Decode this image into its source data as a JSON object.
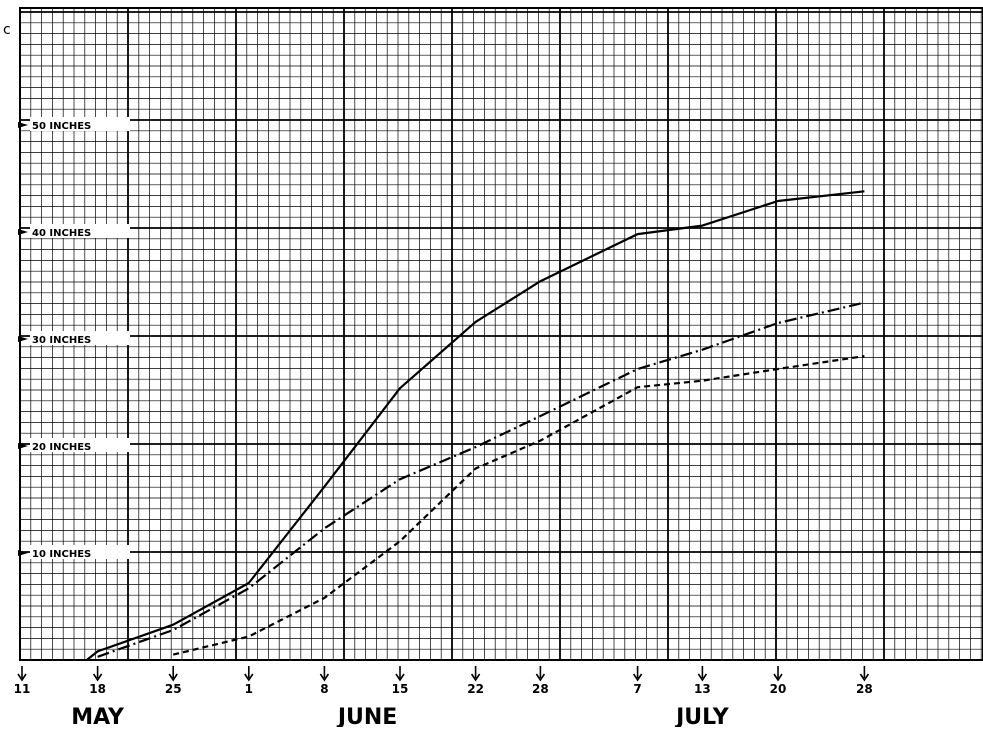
{
  "chart_data": {
    "type": "line",
    "title": "",
    "xlabel": "",
    "ylabel": "",
    "grid": true,
    "y_ticks": [
      {
        "value": 10,
        "label": "10 INCHES"
      },
      {
        "value": 20,
        "label": "20 INCHES"
      },
      {
        "value": 30,
        "label": "30 INCHES"
      },
      {
        "value": 40,
        "label": "40 INCHES"
      },
      {
        "value": 50,
        "label": "50 INCHES"
      }
    ],
    "x_ticks": [
      {
        "date": "May 11",
        "label": "11"
      },
      {
        "date": "May 18",
        "label": "18"
      },
      {
        "date": "May 25",
        "label": "25"
      },
      {
        "date": "June 1",
        "label": "1"
      },
      {
        "date": "June 8",
        "label": "8"
      },
      {
        "date": "June 15",
        "label": "15"
      },
      {
        "date": "June 22",
        "label": "22"
      },
      {
        "date": "June 28",
        "label": "28"
      },
      {
        "date": "July 7",
        "label": "7"
      },
      {
        "date": "July 13",
        "label": "13"
      },
      {
        "date": "July 20",
        "label": "20"
      },
      {
        "date": "July 28",
        "label": "28"
      }
    ],
    "month_labels": [
      {
        "label": "MAY",
        "date": "May 18"
      },
      {
        "label": "JUNE",
        "date": "June 12"
      },
      {
        "label": "JULY",
        "date": "July 13"
      }
    ],
    "series": [
      {
        "style": "solid",
        "points": [
          {
            "date": "May 17",
            "y": 0
          },
          {
            "date": "May 18",
            "y": 0.8
          },
          {
            "date": "May 25",
            "y": 3.3
          },
          {
            "date": "June 1",
            "y": 7.2
          },
          {
            "date": "June 8",
            "y": 16.2
          },
          {
            "date": "June 15",
            "y": 25.4
          },
          {
            "date": "June 22",
            "y": 31.6
          },
          {
            "date": "June 28",
            "y": 35.4
          },
          {
            "date": "July 7",
            "y": 39.8
          },
          {
            "date": "July 13",
            "y": 40.6
          },
          {
            "date": "July 20",
            "y": 42.9
          },
          {
            "date": "July 28",
            "y": 43.8
          }
        ]
      },
      {
        "style": "dash-dot",
        "points": [
          {
            "date": "May 18",
            "y": 0.3
          },
          {
            "date": "May 25",
            "y": 2.8
          },
          {
            "date": "June 1",
            "y": 6.7
          },
          {
            "date": "June 8",
            "y": 12.3
          },
          {
            "date": "June 15",
            "y": 16.9
          },
          {
            "date": "June 22",
            "y": 19.9
          },
          {
            "date": "June 28",
            "y": 22.8
          },
          {
            "date": "July 7",
            "y": 27.2
          },
          {
            "date": "July 13",
            "y": 29.0
          },
          {
            "date": "July 20",
            "y": 31.5
          },
          {
            "date": "July 28",
            "y": 33.4
          }
        ]
      },
      {
        "style": "dashed",
        "points": [
          {
            "date": "May 25",
            "y": 0.5
          },
          {
            "date": "June 1",
            "y": 2.2
          },
          {
            "date": "June 8",
            "y": 5.8
          },
          {
            "date": "June 15",
            "y": 11.1
          },
          {
            "date": "June 22",
            "y": 17.9
          },
          {
            "date": "June 28",
            "y": 20.5
          },
          {
            "date": "July 7",
            "y": 25.5
          },
          {
            "date": "July 13",
            "y": 26.1
          },
          {
            "date": "July 20",
            "y": 27.2
          },
          {
            "date": "July 28",
            "y": 28.4
          }
        ]
      }
    ],
    "corner_mark": "c"
  }
}
